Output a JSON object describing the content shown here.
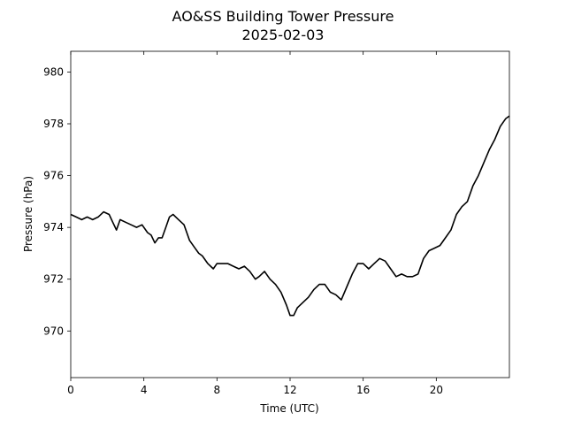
{
  "chart_data": {
    "type": "line",
    "title": "AO&SS Building Tower Pressure",
    "subtitle": "2025-02-03",
    "xlabel": "Time (UTC)",
    "ylabel": "Pressure (hPa)",
    "xlim": [
      0,
      24
    ],
    "ylim": [
      968.2,
      980.8
    ],
    "xticks": [
      0,
      4,
      8,
      12,
      16,
      20
    ],
    "yticks": [
      970,
      972,
      974,
      976,
      978,
      980
    ],
    "grid": false,
    "legend": "none",
    "line_color": "#000000",
    "series": [
      {
        "x": [
          0,
          0.3,
          0.6,
          0.9,
          1.2,
          1.5,
          1.8,
          2.1,
          2.3,
          2.5,
          2.7,
          3.0,
          3.3,
          3.6,
          3.9,
          4.2,
          4.4,
          4.6,
          4.8,
          5.0,
          5.2,
          5.4,
          5.6,
          5.9,
          6.2,
          6.5,
          6.8,
          7.0,
          7.2,
          7.5,
          7.8,
          8.0,
          8.3,
          8.6,
          8.9,
          9.2,
          9.5,
          9.8,
          10.1,
          10.3,
          10.6,
          10.9,
          11.2,
          11.5,
          11.8,
          12.0,
          12.2,
          12.4,
          12.7,
          13.0,
          13.3,
          13.6,
          13.9,
          14.2,
          14.5,
          14.8,
          15.1,
          15.4,
          15.7,
          16.0,
          16.3,
          16.6,
          16.9,
          17.2,
          17.5,
          17.8,
          18.1,
          18.4,
          18.7,
          19.0,
          19.3,
          19.6,
          19.9,
          20.2,
          20.5,
          20.8,
          21.1,
          21.4,
          21.7,
          22.0,
          22.3,
          22.6,
          22.9,
          23.2,
          23.5,
          23.8,
          24.0
        ],
        "y": [
          974.5,
          974.4,
          974.3,
          974.4,
          974.3,
          974.4,
          974.6,
          974.5,
          974.2,
          973.9,
          974.3,
          974.2,
          974.1,
          974.0,
          974.1,
          973.8,
          973.7,
          973.4,
          973.6,
          973.6,
          974.0,
          974.4,
          974.5,
          974.3,
          974.1,
          973.5,
          973.2,
          973.0,
          972.9,
          972.6,
          972.4,
          972.6,
          972.6,
          972.6,
          972.5,
          972.4,
          972.5,
          972.3,
          972.0,
          972.1,
          972.3,
          972.0,
          971.8,
          971.5,
          971.0,
          970.6,
          970.6,
          970.9,
          971.1,
          971.3,
          971.6,
          971.8,
          971.8,
          971.5,
          971.4,
          971.2,
          971.7,
          972.2,
          972.6,
          972.6,
          972.4,
          972.6,
          972.8,
          972.7,
          972.4,
          972.1,
          972.2,
          972.1,
          972.1,
          972.2,
          972.8,
          973.1,
          973.2,
          973.3,
          973.6,
          973.9,
          974.5,
          974.8,
          975.0,
          975.6,
          976.0,
          976.5,
          977.0,
          977.4,
          977.9,
          978.2,
          978.3
        ]
      }
    ]
  }
}
